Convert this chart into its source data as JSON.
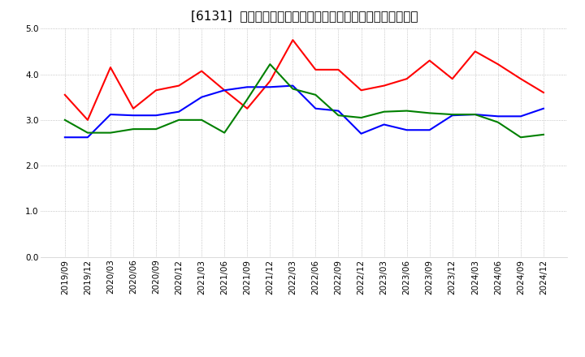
{
  "title": "[6131]  売上債権回転率、買入債務回転率、在庫回転率の推移",
  "x_labels": [
    "2019/09",
    "2019/12",
    "2020/03",
    "2020/06",
    "2020/09",
    "2020/12",
    "2021/03",
    "2021/06",
    "2021/09",
    "2021/12",
    "2022/03",
    "2022/06",
    "2022/09",
    "2022/12",
    "2023/03",
    "2023/06",
    "2023/09",
    "2023/12",
    "2024/03",
    "2024/06",
    "2024/09",
    "2024/12"
  ],
  "series": {
    "売上債権回転率": {
      "color": "#ff0000",
      "values": [
        3.55,
        3.0,
        4.15,
        3.25,
        3.65,
        3.75,
        4.07,
        3.65,
        3.25,
        3.85,
        4.75,
        4.1,
        4.1,
        3.65,
        3.75,
        3.9,
        4.3,
        3.9,
        4.5,
        4.22,
        3.9,
        3.6
      ]
    },
    "買入債務回転率": {
      "color": "#0000ff",
      "values": [
        2.62,
        2.62,
        3.12,
        3.1,
        3.1,
        3.18,
        3.5,
        3.65,
        3.72,
        3.72,
        3.75,
        3.25,
        3.2,
        2.7,
        2.9,
        2.78,
        2.78,
        3.1,
        3.12,
        3.08,
        3.08,
        3.25
      ]
    },
    "在庫回転率": {
      "color": "#008000",
      "values": [
        3.0,
        2.72,
        2.72,
        2.8,
        2.8,
        3.0,
        3.0,
        2.72,
        3.45,
        4.22,
        3.68,
        3.55,
        3.1,
        3.05,
        3.18,
        3.2,
        3.15,
        3.12,
        3.12,
        2.95,
        2.62,
        2.68
      ]
    }
  },
  "ylim": [
    0.0,
    5.0
  ],
  "yticks": [
    0.0,
    1.0,
    2.0,
    3.0,
    4.0,
    5.0
  ],
  "legend_labels": [
    "売上債権回転率",
    "買入債務回転率",
    "在庫回転率"
  ],
  "background_color": "#ffffff",
  "plot_bg_color": "#ffffff",
  "grid_color": "#999999",
  "title_fontsize": 11,
  "axis_fontsize": 7.5
}
